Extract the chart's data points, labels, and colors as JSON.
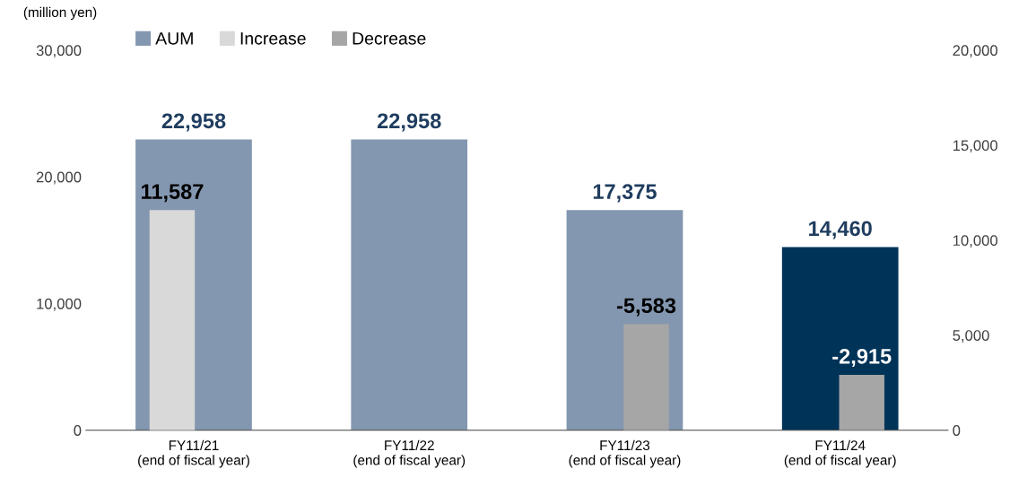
{
  "chart_data": {
    "type": "bar",
    "ylabel": "(million yen)",
    "categories": [
      "FY11/21\n(end of fiscal year)",
      "FY11/22\n(end of fiscal year)",
      "FY11/23\n(end of fiscal year)",
      "FY11/24\n(end of fiscal year)"
    ],
    "series": [
      {
        "name": "AUM",
        "color": "#8497b0",
        "colors": [
          "#8497b0",
          "#8497b0",
          "#8497b0",
          "#003358"
        ],
        "values": [
          22958,
          22958,
          17375,
          14460
        ],
        "value_labels": [
          "22,958",
          "22,958",
          "17,375",
          "14,460"
        ]
      },
      {
        "name": "Increase",
        "color": "#d9d9d9",
        "axis": "y2",
        "values": [
          11587,
          null,
          null,
          null
        ],
        "value_labels": [
          "11,587",
          null,
          null,
          null
        ]
      },
      {
        "name": "Decrease",
        "color": "#a6a6a6",
        "axis": "y2",
        "values": [
          null,
          null,
          -5583,
          -2915
        ],
        "base": [
          null,
          null,
          5583,
          2915
        ],
        "value_labels": [
          null,
          null,
          "-5,583",
          "-2,915"
        ]
      }
    ],
    "ylim": [
      0,
      30000
    ],
    "yticks": [
      {
        "value": 0,
        "label": "0"
      },
      {
        "value": 10000,
        "label": "10,000"
      },
      {
        "value": 20000,
        "label": "20,000"
      },
      {
        "value": 30000,
        "label": "30,000"
      }
    ],
    "y2lim": [
      0,
      20000
    ],
    "y2ticks": [
      {
        "value": 0,
        "label": "0"
      },
      {
        "value": 5000,
        "label": "5,000"
      },
      {
        "value": 10000,
        "label": "10,000"
      },
      {
        "value": 15000,
        "label": "15,000"
      },
      {
        "value": 20000,
        "label": "20,000"
      }
    ],
    "grid": false,
    "legend": "top left"
  }
}
